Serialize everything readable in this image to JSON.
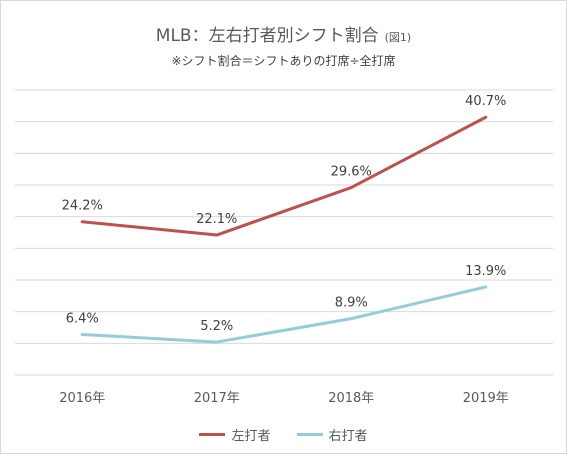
{
  "header": {
    "title": "MLB：左右打者別シフト割合",
    "title_note": "(図1)",
    "subtitle": "※シフト割合＝シフトありの打席÷全打席"
  },
  "chart_data": {
    "type": "line",
    "categories": [
      "2016年",
      "2017年",
      "2018年",
      "2019年"
    ],
    "series": [
      {
        "name": "左打者",
        "color": "#c0504d",
        "values": [
          24.2,
          22.1,
          29.6,
          40.7
        ],
        "labels": [
          "24.2%",
          "22.1%",
          "29.6%",
          "40.7%"
        ]
      },
      {
        "name": "右打者",
        "color": "#92cddc",
        "values": [
          6.4,
          5.2,
          8.9,
          13.9
        ],
        "labels": [
          "6.4%",
          "5.2%",
          "8.9%",
          "13.9%"
        ]
      }
    ],
    "ylim": [
      0,
      45
    ],
    "grid": true,
    "legend_position": "bottom"
  }
}
